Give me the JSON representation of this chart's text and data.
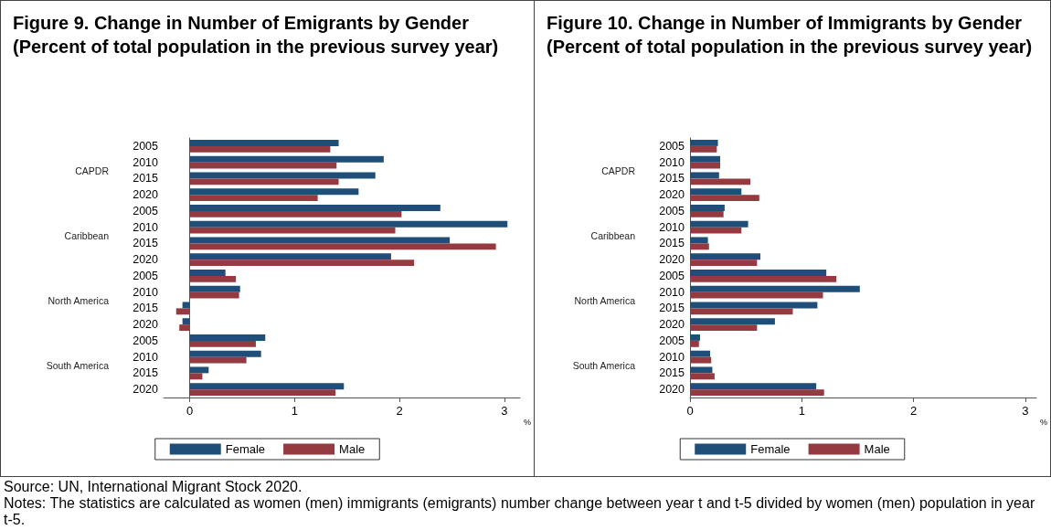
{
  "chart_data": [
    {
      "type": "bar",
      "orientation": "horizontal",
      "title": "Figure 9. Change in Number of Emigrants by Gender (Percent of total population in the previous survey year)",
      "xlabel": "%",
      "categories": [
        "2005",
        "2010",
        "2015",
        "2020",
        "2005",
        "2010",
        "2015",
        "2020",
        "2005",
        "2010",
        "2015",
        "2020",
        "2005",
        "2010",
        "2015",
        "2020"
      ],
      "annotations": [
        "CAPDR",
        "Caribbean",
        "North America",
        "South America"
      ],
      "series": [
        {
          "name": "Female",
          "color": "#1f4e79",
          "values": [
            1.42,
            1.85,
            1.77,
            1.61,
            2.39,
            3.03,
            2.48,
            1.92,
            0.34,
            0.48,
            -0.07,
            -0.07,
            0.72,
            0.68,
            0.18,
            1.47
          ]
        },
        {
          "name": "Male",
          "color": "#943a40",
          "values": [
            1.34,
            1.4,
            1.42,
            1.22,
            2.02,
            1.96,
            2.92,
            2.14,
            0.44,
            0.47,
            -0.13,
            -0.1,
            0.63,
            0.54,
            0.12,
            1.39
          ]
        }
      ],
      "xlim": [
        -0.25,
        3.15
      ],
      "xticks": [
        0,
        1,
        2,
        3
      ],
      "legend": "bottom"
    },
    {
      "type": "bar",
      "orientation": "horizontal",
      "title": "Figure 10. Change in Number of Immigrants by Gender (Percent of total population in the previous survey year)",
      "xlabel": "%",
      "categories": [
        "2005",
        "2010",
        "2015",
        "2020",
        "2005",
        "2010",
        "2015",
        "2020",
        "2005",
        "2010",
        "2015",
        "2020",
        "2005",
        "2010",
        "2015",
        "2020"
      ],
      "annotations": [
        "CAPDR",
        "Caribbean",
        "North America",
        "South America"
      ],
      "series": [
        {
          "name": "Female",
          "color": "#1f4e79",
          "values": [
            0.25,
            0.27,
            0.26,
            0.46,
            0.31,
            0.52,
            0.16,
            0.63,
            1.22,
            1.52,
            1.14,
            0.76,
            0.09,
            0.18,
            0.2,
            1.13
          ]
        },
        {
          "name": "Male",
          "color": "#943a40",
          "values": [
            0.24,
            0.27,
            0.54,
            0.62,
            0.3,
            0.46,
            0.17,
            0.6,
            1.31,
            1.19,
            0.92,
            0.6,
            0.08,
            0.19,
            0.22,
            1.2
          ]
        }
      ],
      "xlim": [
        0,
        3.1
      ],
      "xticks": [
        0,
        1,
        2,
        3
      ],
      "legend": "bottom"
    },
    {
      "type": "other",
      "annotations": [
        "Source: UN, International Migrant Stock 2020.",
        "Notes: The statistics are calculated as women (men) immigrants (emigrants) number change between year t and t-5 divided by women (men) population in year t-5."
      ]
    }
  ]
}
